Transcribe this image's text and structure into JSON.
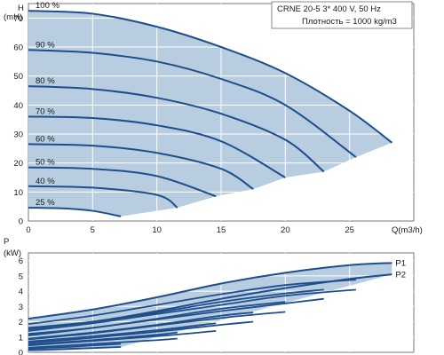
{
  "info": {
    "line1": "CRNE 20-5   3* 400 V, 50 Hz",
    "line2": "Плотность = 1000 kg/m3"
  },
  "colors": {
    "fill": "#b8cde0",
    "curve": "#1f4e8c",
    "background": "#ffffff",
    "text": "#1a1a1a"
  },
  "chart_data": [
    {
      "type": "line",
      "xlabel": "Q(m3/h)",
      "ylabel": "H",
      "yunit": "(mH)",
      "xlim": [
        0,
        30
      ],
      "ylim": [
        0,
        75
      ],
      "xticks": [
        0,
        5,
        10,
        15,
        20,
        25
      ],
      "yticks": [
        0,
        10,
        20,
        30,
        40,
        50,
        60,
        70
      ],
      "grid": true,
      "series": [
        {
          "name": "100 %",
          "x": [
            0,
            5,
            10,
            15,
            20,
            25,
            28.3
          ],
          "y": [
            72.5,
            71.5,
            67,
            60,
            51,
            38,
            27
          ]
        },
        {
          "name": "90 %",
          "x": [
            0,
            5,
            10,
            15,
            20,
            25.5
          ],
          "y": [
            59,
            58,
            55,
            49,
            40,
            22
          ]
        },
        {
          "name": "80 %",
          "x": [
            0,
            5,
            10,
            15,
            20,
            23
          ],
          "y": [
            46.5,
            45.5,
            42.5,
            37,
            28,
            17
          ]
        },
        {
          "name": "70 %",
          "x": [
            0,
            5,
            10,
            15,
            20
          ],
          "y": [
            36,
            35.5,
            33,
            27.5,
            15
          ]
        },
        {
          "name": "60 %",
          "x": [
            0,
            5,
            10,
            15,
            17.5
          ],
          "y": [
            26.5,
            26,
            23.5,
            18,
            11
          ]
        },
        {
          "name": "50 %",
          "x": [
            0,
            5,
            10,
            14.6
          ],
          "y": [
            18.5,
            18,
            15.5,
            8.5
          ]
        },
        {
          "name": "40 %",
          "x": [
            0,
            5,
            10,
            11.6
          ],
          "y": [
            12,
            11.5,
            9,
            4.6
          ]
        },
        {
          "name": "25 %",
          "x": [
            0,
            3,
            5,
            7.2
          ],
          "y": [
            4.6,
            4.3,
            3.5,
            1.6
          ]
        }
      ]
    },
    {
      "type": "area",
      "xlabel": "",
      "ylabel": "P",
      "yunit": "(kW)",
      "xlim": [
        0,
        30
      ],
      "ylim": [
        0,
        6.5
      ],
      "yticks": [
        0,
        1,
        2,
        3,
        4,
        5,
        6
      ],
      "grid": true,
      "series": [
        {
          "name": "P1",
          "x": [
            0,
            5,
            10,
            15,
            20,
            25,
            28.3
          ],
          "y": [
            2.2,
            2.8,
            3.6,
            4.5,
            5.2,
            5.7,
            5.85
          ]
        },
        {
          "name": "P2",
          "x": [
            0,
            5,
            10,
            15,
            20,
            25,
            28.3
          ],
          "y": [
            1.6,
            2.0,
            2.7,
            3.5,
            4.2,
            4.8,
            5.1
          ]
        },
        {
          "name": "",
          "x": [
            0,
            5,
            10,
            15,
            20,
            25.5
          ],
          "y": [
            1.85,
            2.4,
            3.1,
            3.8,
            4.4,
            4.75
          ]
        },
        {
          "name": "",
          "x": [
            0,
            5,
            10,
            15,
            20,
            23
          ],
          "y": [
            1.5,
            2.0,
            2.6,
            3.3,
            3.85,
            4.1
          ]
        },
        {
          "name": "",
          "x": [
            0,
            5,
            10,
            15,
            20
          ],
          "y": [
            1.2,
            1.6,
            2.2,
            2.85,
            3.3
          ]
        },
        {
          "name": "",
          "x": [
            0,
            5,
            10,
            15,
            17.5
          ],
          "y": [
            0.9,
            1.3,
            1.8,
            2.4,
            2.6
          ]
        },
        {
          "name": "",
          "x": [
            0,
            5,
            10,
            14.6
          ],
          "y": [
            0.7,
            1.05,
            1.45,
            1.9
          ]
        },
        {
          "name": "",
          "x": [
            0,
            5,
            10,
            11.6
          ],
          "y": [
            0.5,
            0.8,
            1.15,
            1.3
          ]
        },
        {
          "name": "",
          "x": [
            0,
            3,
            5,
            7.2
          ],
          "y": [
            0.25,
            0.35,
            0.45,
            0.55
          ]
        },
        {
          "name": "",
          "x": [
            0,
            5,
            10,
            15,
            20,
            25.5
          ],
          "y": [
            1.4,
            1.9,
            2.5,
            3.1,
            3.7,
            4.1
          ]
        },
        {
          "name": "",
          "x": [
            0,
            5,
            10,
            15,
            20,
            23
          ],
          "y": [
            1.1,
            1.6,
            2.15,
            2.7,
            3.2,
            3.5
          ]
        },
        {
          "name": "",
          "x": [
            0,
            5,
            10,
            15,
            20
          ],
          "y": [
            0.85,
            1.25,
            1.75,
            2.25,
            2.65
          ]
        },
        {
          "name": "",
          "x": [
            0,
            5,
            10,
            15,
            17.5
          ],
          "y": [
            0.6,
            0.95,
            1.35,
            1.8,
            2.0
          ]
        },
        {
          "name": "",
          "x": [
            0,
            5,
            10,
            14.6
          ],
          "y": [
            0.45,
            0.75,
            1.05,
            1.4
          ]
        },
        {
          "name": "",
          "x": [
            0,
            5,
            10,
            11.6
          ],
          "y": [
            0.3,
            0.55,
            0.8,
            0.9
          ]
        },
        {
          "name": "",
          "x": [
            0,
            3,
            5,
            7.2
          ],
          "y": [
            0.15,
            0.22,
            0.28,
            0.35
          ]
        }
      ]
    }
  ]
}
